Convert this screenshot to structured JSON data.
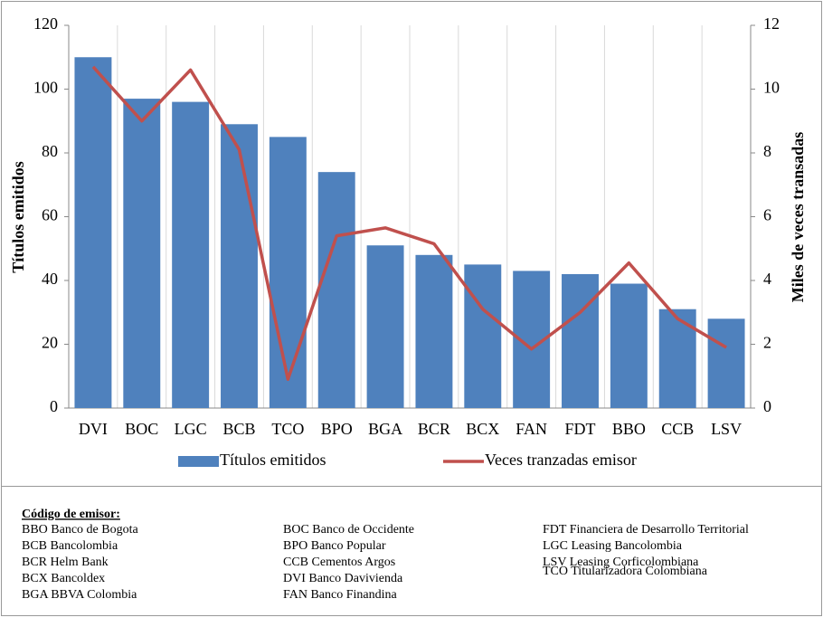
{
  "chart_data": {
    "type": "bar",
    "categories": [
      "DVI",
      "BOC",
      "LGC",
      "BCB",
      "TCO",
      "BPO",
      "BGA",
      "BCR",
      "BCX",
      "FAN",
      "FDT",
      "BBO",
      "CCB",
      "LSV"
    ],
    "series": [
      {
        "name": "Títulos emitidos",
        "type": "bar",
        "color": "#4f81bd",
        "values": [
          110,
          97,
          96,
          89,
          85,
          74,
          51,
          48,
          45,
          43,
          42,
          39,
          31,
          28
        ]
      },
      {
        "name": "Veces tranzadas emisor",
        "type": "line",
        "axis": "y2",
        "color": "#c0504d",
        "values": [
          10.7,
          9.0,
          10.6,
          8.1,
          0.9,
          5.4,
          5.65,
          5.15,
          3.1,
          1.85,
          3.0,
          4.55,
          2.8,
          1.9
        ]
      }
    ],
    "ylabel": "Títulos emitidos",
    "y2label": "Miles de veces transadas",
    "ylim": [
      0,
      120
    ],
    "yticks": [
      0,
      20,
      40,
      60,
      80,
      100,
      120
    ],
    "y2lim": [
      0,
      12
    ],
    "y2ticks": [
      0,
      2,
      4,
      6,
      8,
      10,
      12
    ],
    "legend": "bottom"
  },
  "notes": {
    "title": "Código de emisor:",
    "columns": [
      [
        "BBO Banco de Bogota",
        "BCB Bancolombia",
        "BCR Helm Bank",
        "BCX Bancoldex",
        "BGA BBVA Colombia"
      ],
      [
        "BOC Banco de Occidente",
        "BPO Banco Popular",
        "CCB Cementos Argos",
        "DVI Banco Davivienda",
        "FAN Banco Finandina"
      ],
      [
        "FDT Financiera de Desarrollo Territorial",
        "LGC Leasing Bancolombia",
        "LSV Leasing Corficolombiana",
        "TCO Titularizadora Colombiana"
      ]
    ]
  }
}
